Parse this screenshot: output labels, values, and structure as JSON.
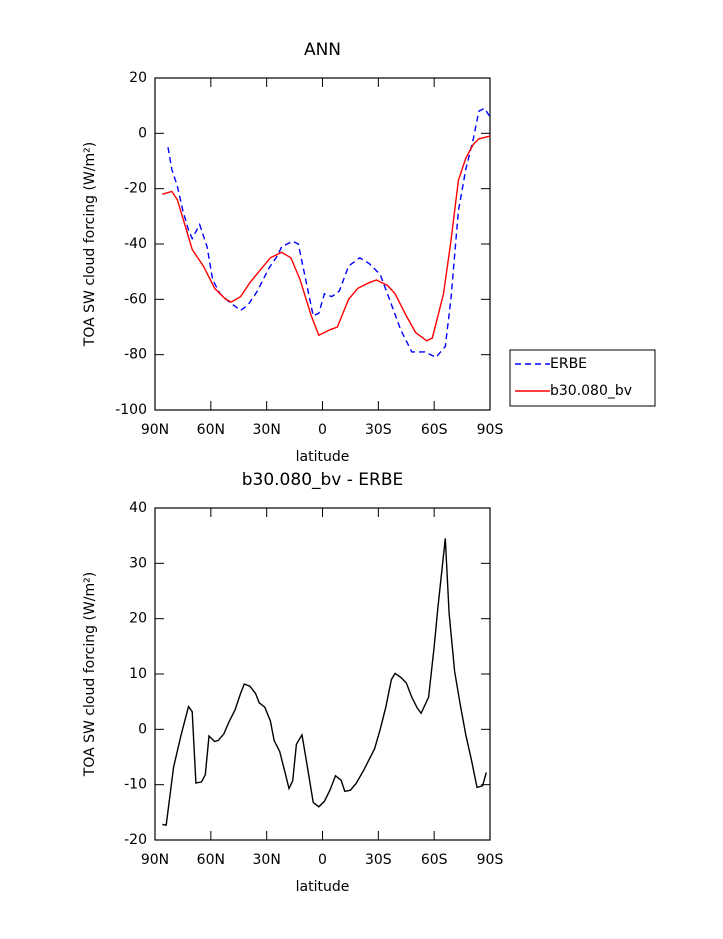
{
  "chart_data": [
    {
      "type": "line",
      "title": "ANN",
      "x_label": "latitude",
      "y_label": "TOA SW cloud forcing (W/m²)",
      "xlim": [
        90,
        -90
      ],
      "xticks": [
        {
          "value": 90,
          "label": "90N"
        },
        {
          "value": 60,
          "label": "60N"
        },
        {
          "value": 30,
          "label": "30N"
        },
        0,
        {
          "value": -30,
          "label": "30S"
        },
        {
          "value": -60,
          "label": "60S"
        },
        {
          "value": -90,
          "label": "90S"
        }
      ],
      "ylim": [
        -100,
        20
      ],
      "yticks": [
        -100,
        -80,
        -60,
        -40,
        -20,
        0,
        20
      ],
      "legend": "outside-right",
      "series": [
        {
          "name": "ERBE",
          "color": "#0000ff",
          "line_style": "dashed",
          "x": [
            83,
            81,
            78,
            75,
            72,
            70,
            66,
            62,
            59,
            55,
            50,
            44,
            40,
            35,
            29,
            24,
            22,
            16,
            13,
            9,
            5,
            2,
            -1,
            -5,
            -9,
            -14,
            -20,
            -25,
            -31,
            -36,
            -42,
            -48,
            -55,
            -61,
            -66,
            -69,
            -73,
            -77,
            -81,
            -84,
            -87,
            -90
          ],
          "values": [
            -5,
            -13,
            -19,
            -28,
            -35,
            -38,
            -33,
            -41,
            -53,
            -58,
            -61,
            -64,
            -62,
            -57,
            -49,
            -44,
            -41,
            -39,
            -40,
            -53,
            -66,
            -65,
            -58,
            -59,
            -57,
            -48,
            -45,
            -47,
            -51,
            -60,
            -71,
            -79,
            -79,
            -81,
            -77,
            -60,
            -28,
            -13,
            -2,
            8,
            9,
            6
          ]
        },
        {
          "name": "b30.080_bv",
          "color": "#ff0000",
          "line_style": "solid",
          "x": [
            86,
            81,
            78,
            74,
            70,
            64,
            58,
            52,
            49,
            44,
            39,
            33,
            28,
            22,
            17,
            12,
            6,
            2,
            -1,
            -4,
            -8,
            -14,
            -19,
            -25,
            -29,
            -35,
            -39,
            -45,
            -50,
            -56,
            -59,
            -65,
            -69,
            -73,
            -77,
            -81,
            -84,
            -90
          ],
          "values": [
            -22,
            -21,
            -24,
            -33,
            -42,
            -48,
            -56,
            -60,
            -61,
            -59,
            -54,
            -49,
            -45,
            -43,
            -45,
            -53,
            -66,
            -73,
            -72,
            -71,
            -70,
            -60,
            -56,
            -54,
            -53,
            -55,
            -58,
            -66,
            -72,
            -75,
            -74,
            -58,
            -39,
            -17,
            -9,
            -4,
            -2,
            -1
          ]
        }
      ]
    },
    {
      "type": "line",
      "title": "b30.080_bv - ERBE",
      "x_label": "latitude",
      "y_label": "TOA SW cloud forcing (W/m²)",
      "xlim": [
        90,
        -90
      ],
      "xticks": [
        {
          "value": 90,
          "label": "90N"
        },
        {
          "value": 60,
          "label": "60N"
        },
        {
          "value": 30,
          "label": "30N"
        },
        0,
        {
          "value": -30,
          "label": "30S"
        },
        {
          "value": -60,
          "label": "60S"
        },
        {
          "value": -90,
          "label": "90S"
        }
      ],
      "ylim": [
        -20,
        40
      ],
      "yticks": [
        -20,
        -10,
        0,
        10,
        20,
        30,
        40
      ],
      "series": [
        {
          "color": "#000000",
          "line_style": "solid",
          "x": [
            86,
            84,
            80,
            76,
            72,
            70,
            68,
            65,
            63,
            61,
            58,
            56,
            53,
            50,
            47,
            44,
            42,
            39,
            36,
            34,
            31,
            28,
            26,
            23,
            20,
            18,
            16,
            14,
            11,
            8,
            5,
            2,
            -1,
            -4,
            -7,
            -10,
            -12,
            -15,
            -18,
            -22,
            -25,
            -28,
            -31,
            -34,
            -37,
            -39,
            -42,
            -45,
            -48,
            -51,
            -53,
            -57,
            -60,
            -62,
            -66,
            -68,
            -71,
            -74,
            -77,
            -80,
            -83,
            -86,
            -88
          ],
          "values": [
            -17.2,
            -17.3,
            -6.8,
            -1,
            4.1,
            3.2,
            -9.7,
            -9.5,
            -8.2,
            -1.2,
            -2.2,
            -2,
            -0.8,
            1.5,
            3.5,
            6.5,
            8.2,
            7.8,
            6.5,
            4.8,
            4,
            1.5,
            -2,
            -4,
            -8,
            -10.7,
            -9.3,
            -2.7,
            -1,
            -7,
            -13.2,
            -14,
            -13,
            -11,
            -8.4,
            -9.2,
            -11.2,
            -11,
            -9.8,
            -7.5,
            -5.5,
            -3.5,
            0,
            4,
            9,
            10.1,
            9.4,
            8.4,
            5.8,
            3.8,
            2.9,
            5.8,
            15,
            22,
            34.5,
            21,
            10.5,
            4.5,
            -1,
            -5.5,
            -10.5,
            -10.2,
            -7.8
          ]
        }
      ]
    }
  ]
}
